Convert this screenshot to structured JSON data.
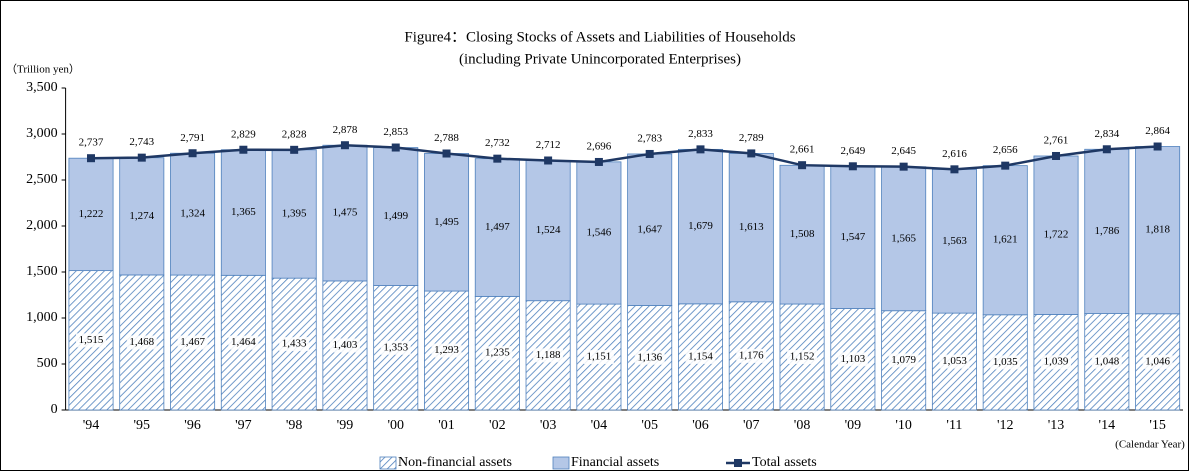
{
  "chart_data": {
    "type": "bar",
    "stacked": true,
    "title": "Figure4：Closing Stocks of Assets and Liabilities of Households",
    "subtitle": "(including Private Unincorporated Enterprises)",
    "y_label": "（Trillion yen）",
    "x_label": "(Calendar Year)",
    "categories": [
      "'94",
      "'95",
      "'96",
      "'97",
      "'98",
      "'99",
      "'00",
      "'01",
      "'02",
      "'03",
      "'04",
      "'05",
      "'06",
      "'07",
      "'08",
      "'09",
      "'10",
      "'11",
      "'12",
      "'13",
      "'14",
      "'15"
    ],
    "series": [
      {
        "name": "Non-financial assets",
        "type": "bar",
        "pattern": "hatch",
        "color": "#4f81bd",
        "values": [
          1515,
          1468,
          1467,
          1464,
          1433,
          1403,
          1353,
          1293,
          1235,
          1188,
          1151,
          1136,
          1154,
          1176,
          1152,
          1103,
          1079,
          1053,
          1035,
          1039,
          1048,
          1046
        ],
        "value_labels": [
          "1,515",
          "1,468",
          "1,467",
          "1,464",
          "1,433",
          "1,403",
          "1,353",
          "1,293",
          "1,235",
          "1,188",
          "1,151",
          "1,136",
          "1,154",
          "1,176",
          "1,152",
          "1,103",
          "1,079",
          "1,053",
          "1,035",
          "1,039",
          "1,048",
          "1,046"
        ]
      },
      {
        "name": "Financial assets",
        "type": "bar",
        "color": "#b4c7e7",
        "values": [
          1222,
          1274,
          1324,
          1365,
          1395,
          1475,
          1499,
          1495,
          1497,
          1524,
          1546,
          1647,
          1679,
          1613,
          1508,
          1547,
          1565,
          1563,
          1621,
          1722,
          1786,
          1818
        ],
        "value_labels": [
          "1,222",
          "1,274",
          "1,324",
          "1,365",
          "1,395",
          "1,475",
          "1,499",
          "1,495",
          "1,497",
          "1,524",
          "1,546",
          "1,647",
          "1,679",
          "1,613",
          "1,508",
          "1,547",
          "1,565",
          "1,563",
          "1,621",
          "1,722",
          "1,786",
          "1,818"
        ]
      },
      {
        "name": "Total assets",
        "type": "line",
        "color": "#1f3864",
        "values": [
          2737,
          2743,
          2791,
          2829,
          2828,
          2878,
          2853,
          2788,
          2732,
          2712,
          2696,
          2783,
          2833,
          2789,
          2661,
          2649,
          2645,
          2616,
          2656,
          2761,
          2834,
          2864
        ],
        "value_labels": [
          "2,737",
          "2,743",
          "2,791",
          "2,829",
          "2,828",
          "2,878",
          "2,853",
          "2,788",
          "2,732",
          "2,712",
          "2,696",
          "2,783",
          "2,833",
          "2,789",
          "2,661",
          "2,649",
          "2,645",
          "2,616",
          "2,656",
          "2,761",
          "2,834",
          "2,864"
        ]
      }
    ],
    "ylim": [
      0,
      3500
    ],
    "yticks": [
      0,
      500,
      {
        "value": 1000,
        "label": "1,000"
      },
      {
        "value": 1500,
        "label": "1,500"
      },
      {
        "value": 2000,
        "label": "2,000"
      },
      {
        "value": 2500,
        "label": "2,500"
      },
      {
        "value": 3000,
        "label": "3,000"
      },
      {
        "value": 3500,
        "label": "3,500"
      }
    ],
    "grid": false,
    "legend": "bottom"
  }
}
